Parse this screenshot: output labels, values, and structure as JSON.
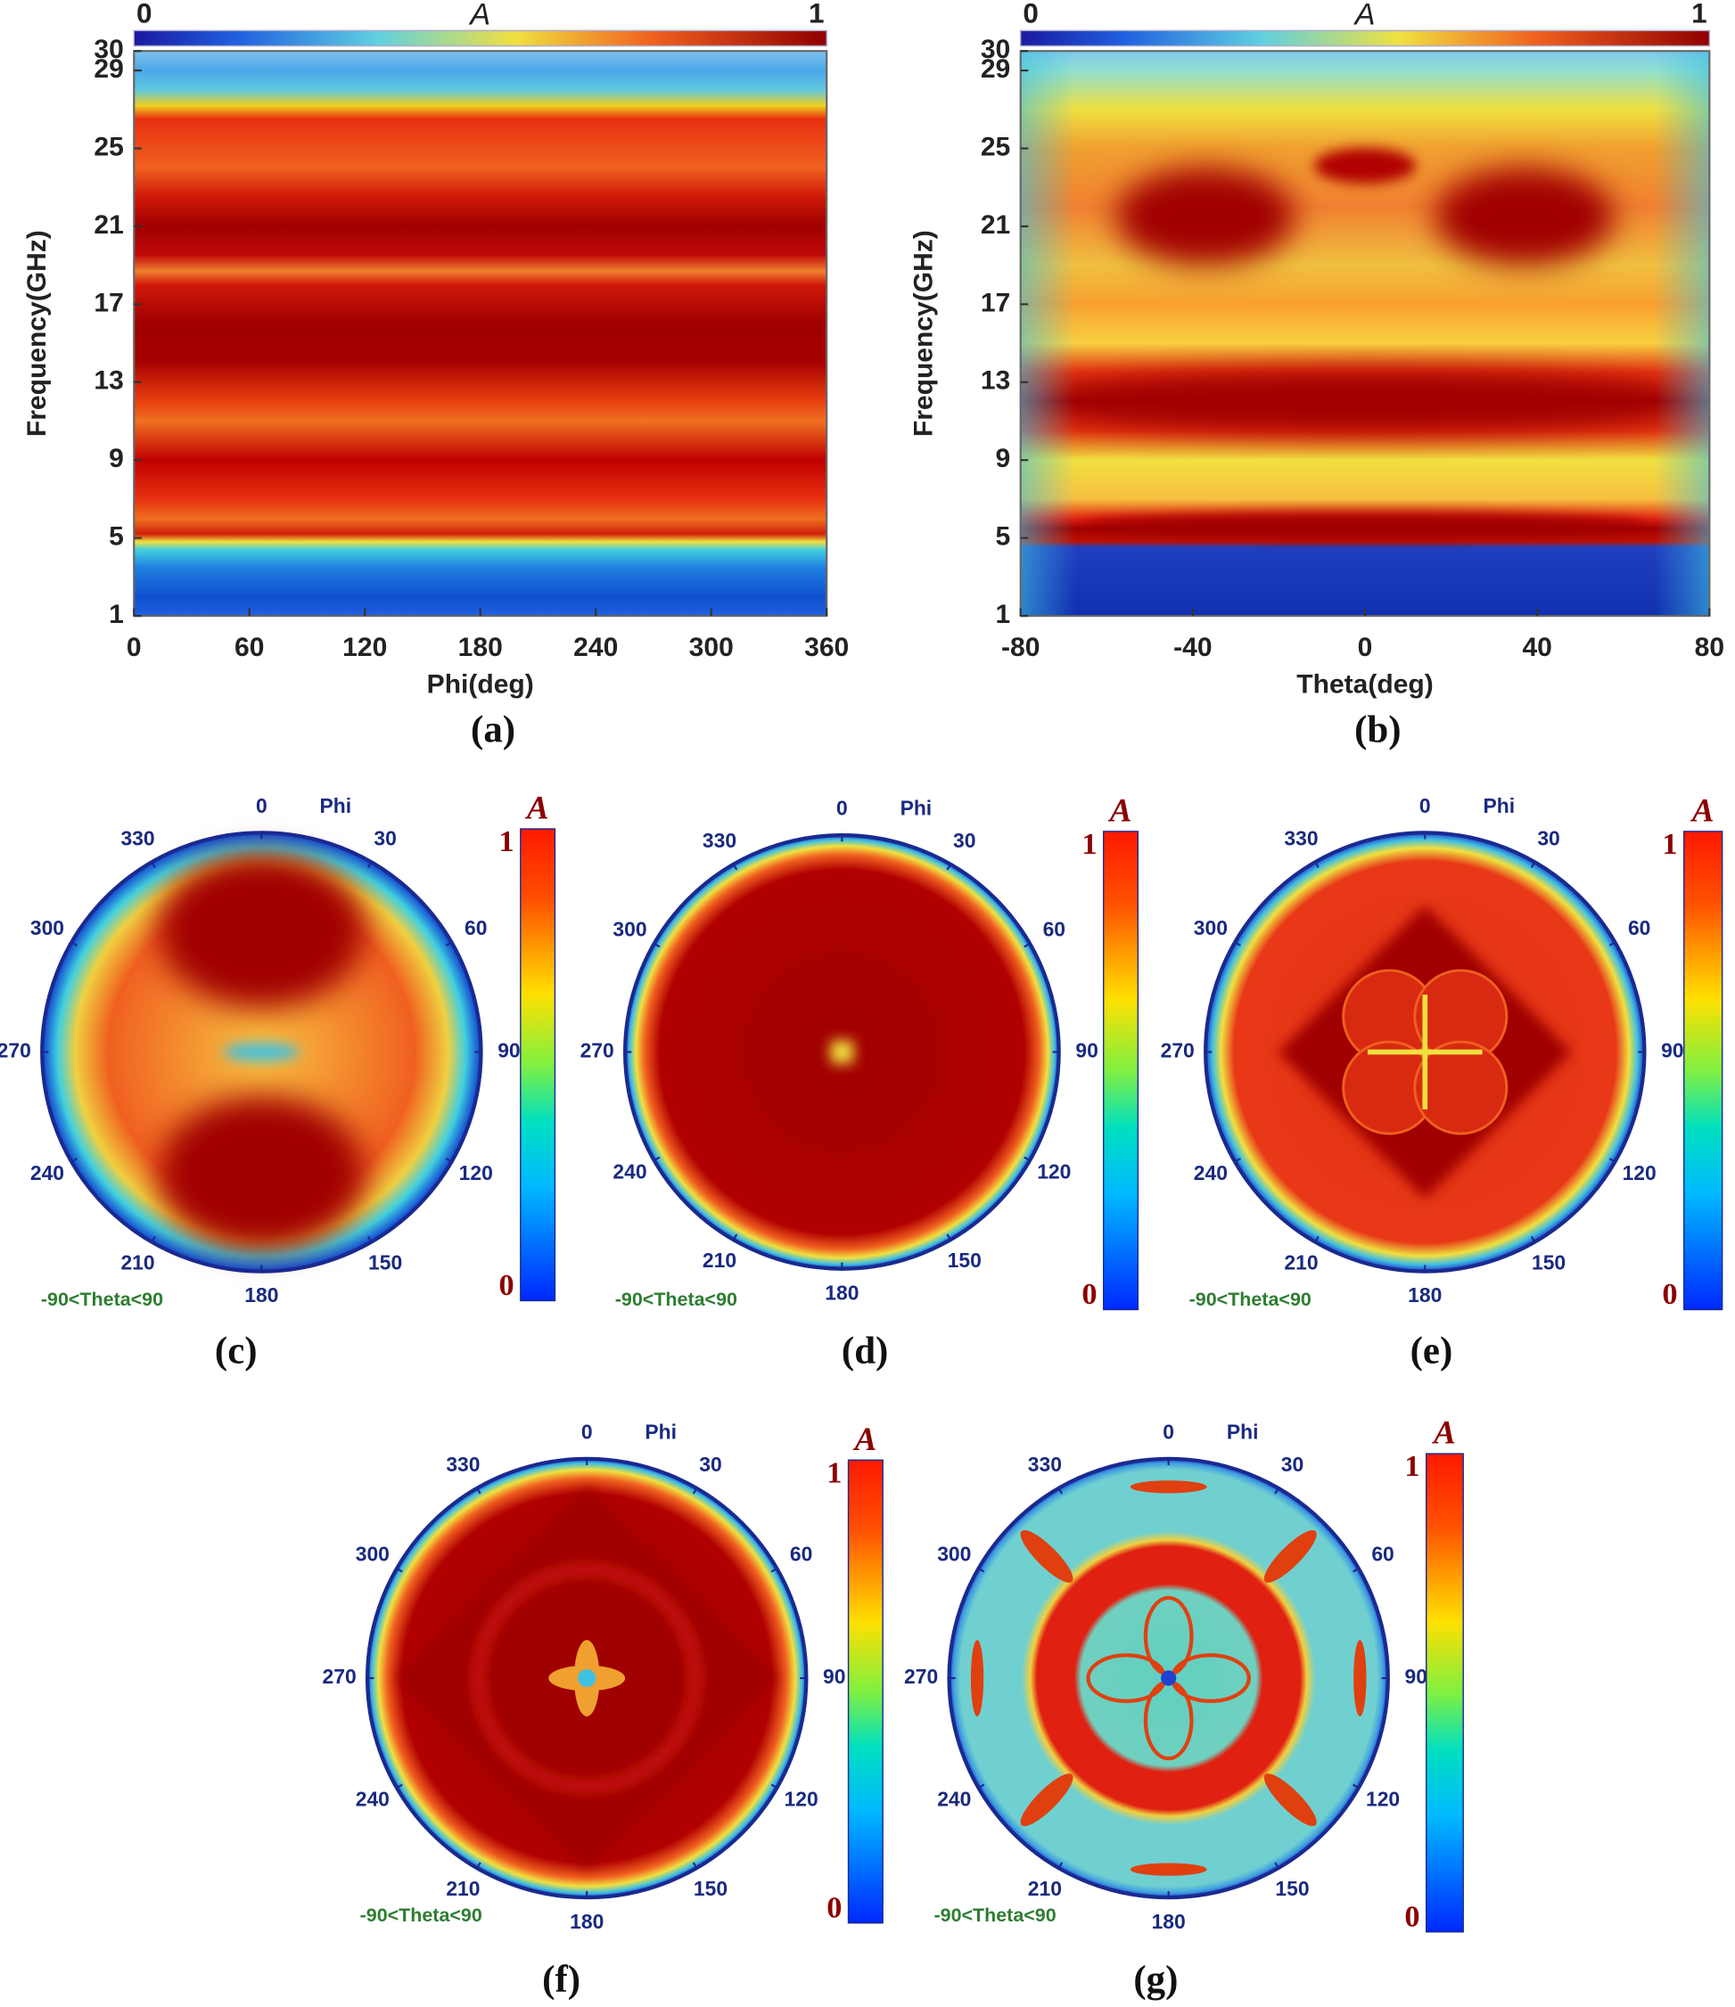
{
  "chart_data": [
    {
      "type": "heatmap",
      "caption": "(a)",
      "xlabel": "Phi(deg)",
      "ylabel": "Frequency(GHz)",
      "xlim": [
        0,
        360
      ],
      "xticks": [
        0,
        60,
        120,
        180,
        240,
        300,
        360
      ],
      "ylim": [
        1,
        30
      ],
      "yticks": [
        1,
        5,
        9,
        13,
        17,
        21,
        25,
        29,
        30
      ],
      "clabel": "A",
      "clim": [
        0,
        1
      ],
      "cticks": [
        0,
        1
      ]
    },
    {
      "type": "heatmap",
      "caption": "(b)",
      "xlabel": "Theta(deg)",
      "ylabel": "Frequency(GHz)",
      "xlim": [
        -80,
        80
      ],
      "xticks": [
        -80,
        -40,
        0,
        40,
        80
      ],
      "ylim": [
        1,
        30
      ],
      "yticks": [
        1,
        5,
        9,
        13,
        17,
        21,
        25,
        29,
        30
      ],
      "clabel": "A",
      "clim": [
        0,
        1
      ],
      "cticks": [
        0,
        1
      ]
    },
    {
      "type": "polar",
      "caption": "(c)",
      "angle_label": "Phi",
      "angle_ticks": [
        0,
        30,
        60,
        90,
        120,
        150,
        180,
        210,
        240,
        270,
        300,
        330
      ],
      "note": "-90<Theta<90",
      "clabel": "A",
      "clim": [
        0,
        1
      ],
      "cticks": [
        0,
        1
      ]
    },
    {
      "type": "polar",
      "caption": "(d)",
      "angle_label": "Phi",
      "angle_ticks": [
        0,
        30,
        60,
        90,
        120,
        150,
        180,
        210,
        240,
        270,
        300,
        330
      ],
      "note": "-90<Theta<90",
      "clabel": "A",
      "clim": [
        0,
        1
      ],
      "cticks": [
        0,
        1
      ]
    },
    {
      "type": "polar",
      "caption": "(e)",
      "angle_label": "Phi",
      "angle_ticks": [
        0,
        30,
        60,
        90,
        120,
        150,
        180,
        210,
        240,
        270,
        300,
        330
      ],
      "note": "-90<Theta<90",
      "clabel": "A",
      "clim": [
        0,
        1
      ],
      "cticks": [
        0,
        1
      ]
    },
    {
      "type": "polar",
      "caption": "(f)",
      "angle_label": "Phi",
      "angle_ticks": [
        0,
        30,
        60,
        90,
        120,
        150,
        180,
        210,
        240,
        270,
        300,
        330
      ],
      "note": "-90<Theta<90",
      "clabel": "A",
      "clim": [
        0,
        1
      ],
      "cticks": [
        0,
        1
      ]
    },
    {
      "type": "polar",
      "caption": "(g)",
      "angle_label": "Phi",
      "angle_ticks": [
        0,
        30,
        60,
        90,
        120,
        150,
        180,
        210,
        240,
        270,
        300,
        330
      ],
      "note": "-90<Theta<90",
      "clabel": "A",
      "clim": [
        0,
        1
      ],
      "cticks": [
        0,
        1
      ]
    }
  ]
}
